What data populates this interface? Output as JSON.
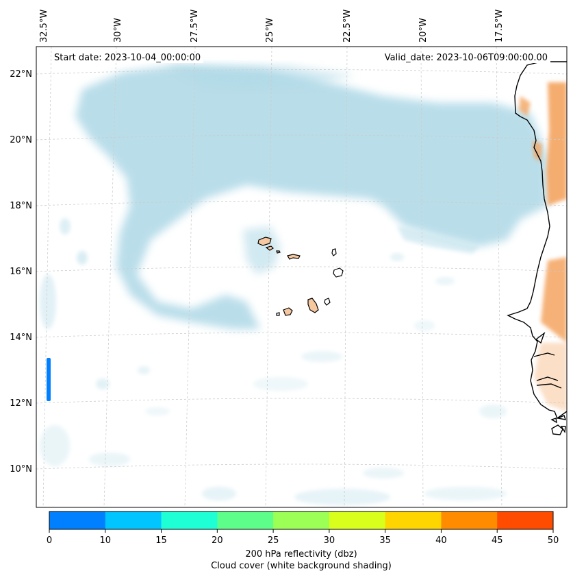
{
  "map": {
    "start_date": "Start date: 2023-10-04_00:00:00",
    "valid_date": "Valid_date: 2023-10-06T09:00:00.00",
    "lon_labels": [
      "32.5°W",
      "30°W",
      "27.5°W",
      "25°W",
      "22.5°W",
      "20°W",
      "17.5°W"
    ],
    "lat_labels": [
      "22°N",
      "20°N",
      "18°N",
      "16°N",
      "14°N",
      "12°N",
      "10°N"
    ],
    "colors": {
      "cloud": "#add8e6",
      "land_shading": "#f4a460",
      "island_fill": "#f6c8a0",
      "coast": "#000000",
      "gridline": "#cccccc"
    }
  },
  "colorbar": {
    "ticks": [
      "0",
      "10",
      "15",
      "20",
      "25",
      "30",
      "35",
      "40",
      "45",
      "50"
    ],
    "bins": [
      {
        "from": 0,
        "to": 10,
        "color": "#0080ff"
      },
      {
        "from": 10,
        "to": 15,
        "color": "#00c5ff"
      },
      {
        "from": 15,
        "to": 20,
        "color": "#1fffd6"
      },
      {
        "from": 20,
        "to": 25,
        "color": "#5dff8a"
      },
      {
        "from": 25,
        "to": 30,
        "color": "#9cff55"
      },
      {
        "from": 30,
        "to": 35,
        "color": "#d9ff1c"
      },
      {
        "from": 35,
        "to": 40,
        "color": "#ffd500"
      },
      {
        "from": 40,
        "to": 45,
        "color": "#ff8c00"
      },
      {
        "from": 45,
        "to": 50,
        "color": "#ff4c00"
      }
    ],
    "label_line1": "200 hPa reflectivity (dbz)",
    "label_line2": "Cloud cover (white background shading)"
  }
}
